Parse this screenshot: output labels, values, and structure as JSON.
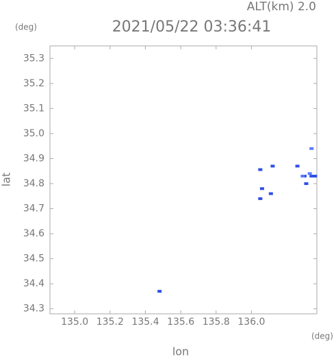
{
  "chart_data": {
    "type": "scatter",
    "title": "2021/05/22 03:36:41",
    "subtitle": "ALT(km) 2.0",
    "x_label": "lon",
    "y_label": "lat",
    "x_unit": "(deg)",
    "y_unit": "(deg)",
    "xlim": [
      134.86,
      136.37
    ],
    "ylim": [
      34.28,
      35.35
    ],
    "xticks": [
      {
        "value": 135,
        "label": "135.0"
      },
      135.2,
      135.4,
      135.6,
      135.8,
      {
        "value": 136,
        "label": "136.0"
      }
    ],
    "yticks": [
      34.3,
      34.4,
      34.5,
      34.6,
      34.7,
      34.8,
      34.9,
      {
        "value": 35,
        "label": "35.0"
      },
      35.1,
      35.2,
      35.3
    ],
    "series": [
      {
        "color": "#2f4fe8",
        "x": [
          135.48,
          136.05,
          136.12,
          136.05,
          136.11,
          136.06,
          136.26,
          136.3,
          136.34,
          136.36,
          136.31
        ],
        "values": [
          34.37,
          34.856,
          34.87,
          34.74,
          34.76,
          34.78,
          34.87,
          34.83,
          34.83,
          34.83,
          34.8
        ]
      },
      {
        "color": "#5a7cff",
        "x": [
          136.34,
          136.29,
          136.33
        ],
        "values": [
          34.94,
          34.83,
          34.84
        ]
      }
    ]
  }
}
